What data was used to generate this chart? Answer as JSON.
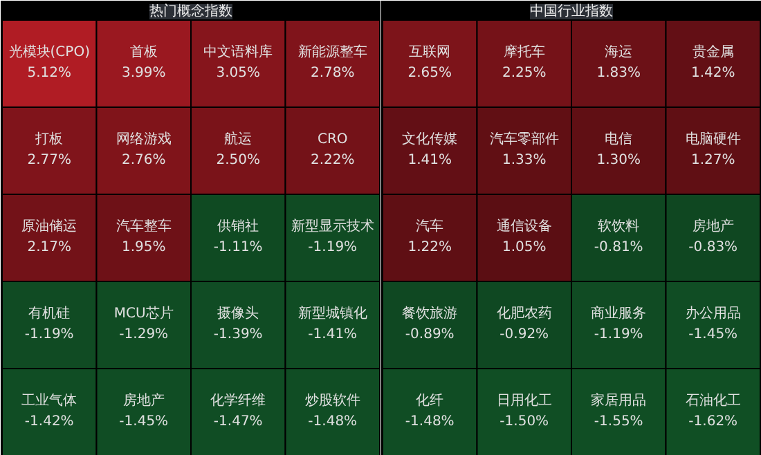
{
  "chart_data": [
    {
      "type": "other",
      "title": "热门概念指数",
      "categories": [
        "光模块(CPO)",
        "首板",
        "中文语料库",
        "新能源整车",
        "打板",
        "网络游戏",
        "航运",
        "CRO",
        "原油储运",
        "汽车整车",
        "供销社",
        "新型显示技术",
        "有机硅",
        "MCU芯片",
        "摄像头",
        "新型城镇化",
        "工业气体",
        "房地产",
        "化学纤维",
        "炒股软件"
      ],
      "values": [
        5.12,
        3.99,
        3.05,
        2.78,
        2.77,
        2.76,
        2.5,
        2.22,
        2.17,
        1.95,
        -1.11,
        -1.19,
        -1.19,
        -1.29,
        -1.39,
        -1.41,
        -1.42,
        -1.45,
        -1.47,
        -1.48
      ],
      "value_labels": [
        "5.12%",
        "3.99%",
        "3.05%",
        "2.78%",
        "2.77%",
        "2.76%",
        "2.50%",
        "2.22%",
        "2.17%",
        "1.95%",
        "-1.11%",
        "-1.19%",
        "-1.19%",
        "-1.29%",
        "-1.39%",
        "-1.41%",
        "-1.42%",
        "-1.45%",
        "-1.47%",
        "-1.48%"
      ]
    },
    {
      "type": "other",
      "title": "中国行业指数",
      "categories": [
        "互联网",
        "摩托车",
        "海运",
        "贵金属",
        "文化传媒",
        "汽车零部件",
        "电信",
        "电脑硬件",
        "汽车",
        "通信设备",
        "软饮料",
        "房地产",
        "餐饮旅游",
        "化肥农药",
        "商业服务",
        "办公用品",
        "化纤",
        "日用化工",
        "家居用品",
        "石油化工"
      ],
      "values": [
        2.65,
        2.25,
        1.83,
        1.42,
        1.41,
        1.33,
        1.3,
        1.27,
        1.22,
        1.05,
        -0.81,
        -0.83,
        -0.89,
        -0.92,
        -1.19,
        -1.45,
        -1.48,
        -1.5,
        -1.55,
        -1.62
      ],
      "value_labels": [
        "2.65%",
        "2.25%",
        "1.83%",
        "1.42%",
        "1.41%",
        "1.33%",
        "1.30%",
        "1.27%",
        "1.22%",
        "1.05%",
        "-0.81%",
        "-0.83%",
        "-0.89%",
        "-0.92%",
        "-1.19%",
        "-1.45%",
        "-1.48%",
        "-1.50%",
        "-1.55%",
        "-1.62%"
      ]
    }
  ]
}
